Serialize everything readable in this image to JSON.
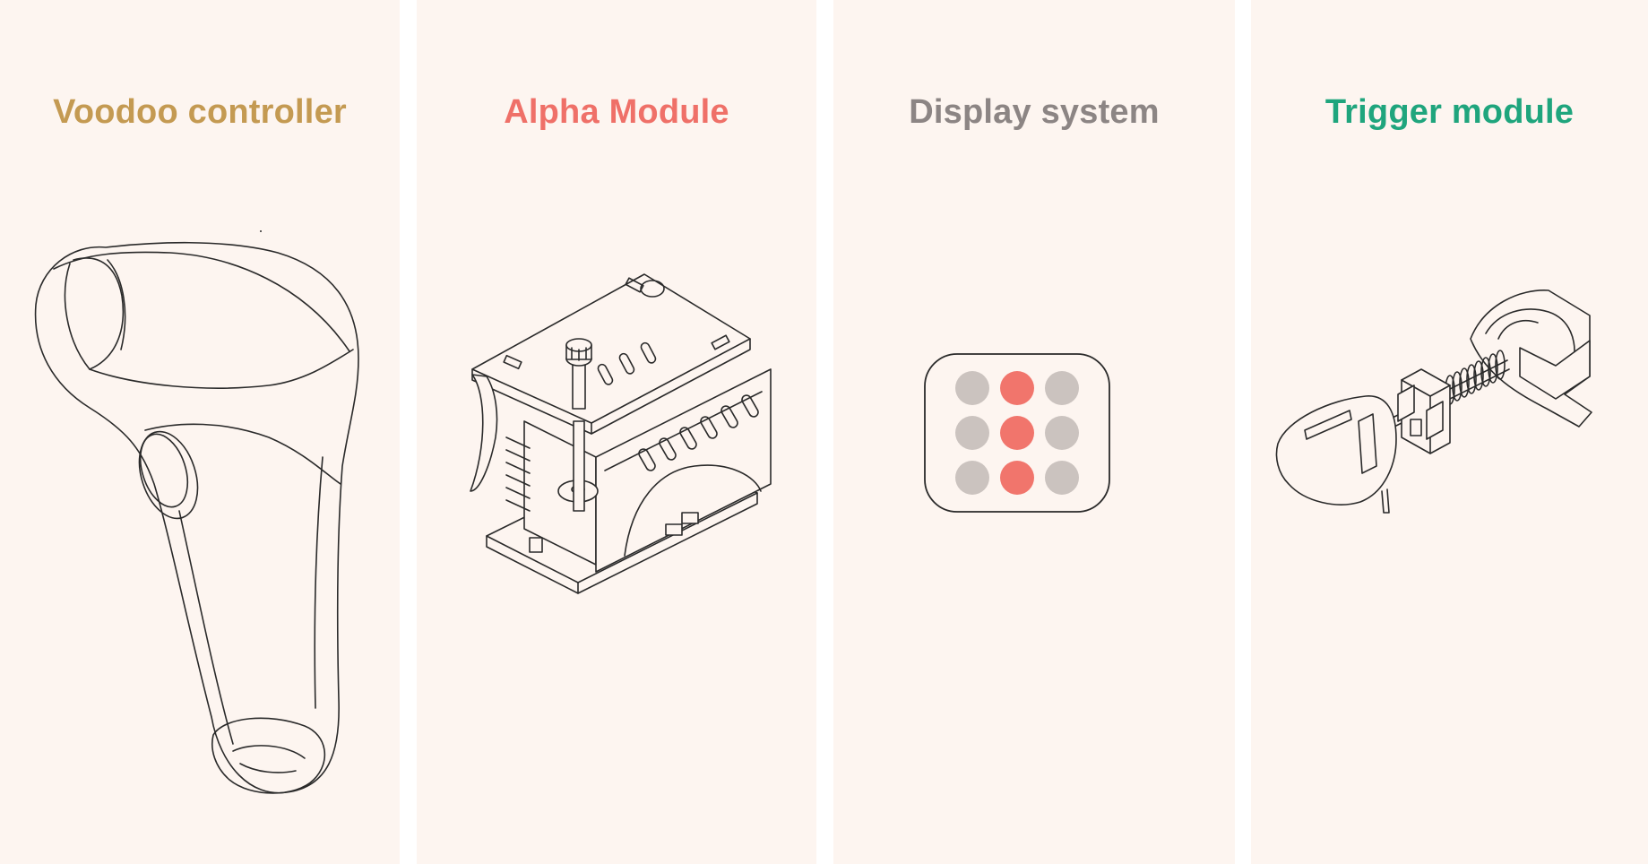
{
  "panels": [
    {
      "title": "Voodoo controller",
      "color": "#c49a52",
      "illustration": "controller-illustration"
    },
    {
      "title": "Alpha Module",
      "color": "#ef7068",
      "illustration": "alpha-module-illustration"
    },
    {
      "title": "Display system",
      "color": "#8c8584",
      "illustration": "display-illustration"
    },
    {
      "title": "Trigger module",
      "color": "#1fa57d",
      "illustration": "trigger-module-illustration"
    }
  ],
  "display_grid": {
    "rows": 3,
    "cols": 3,
    "active_color": "#f1756c",
    "inactive_color": "#cbc3bf",
    "active_column": 2
  }
}
